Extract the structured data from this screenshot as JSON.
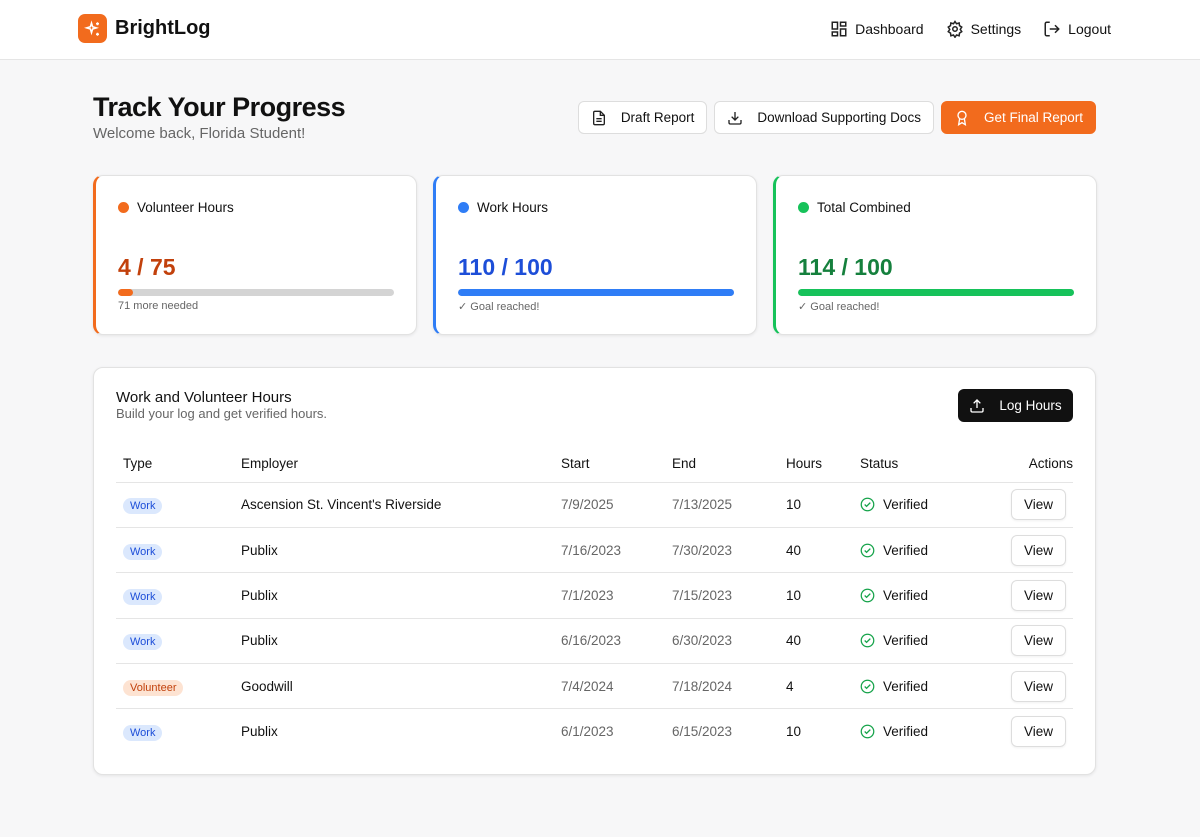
{
  "header": {
    "brand": "BrightLog",
    "nav": [
      "Dashboard",
      "Settings",
      "Logout"
    ]
  },
  "hero": {
    "title": "Track Your Progress",
    "subtitle": "Welcome back, Florida Student!",
    "buttons": [
      "Draft Report",
      "Download Supporting Docs",
      "Get Final Report"
    ]
  },
  "cards": [
    {
      "title": "Volunteer Hours",
      "value": 4,
      "goal": 75,
      "label": "4 / 75",
      "note": "71 more needed",
      "color": "#f26b1d",
      "text_color": "#c2410c"
    },
    {
      "title": "Work Hours",
      "value": 110,
      "goal": 100,
      "label": "110 / 100",
      "note": "✓ Goal reached!",
      "color": "#2f7df6",
      "text_color": "#1d4ed8"
    },
    {
      "title": "Total Combined",
      "value": 114,
      "goal": 100,
      "label": "114 / 100",
      "note": "✓ Goal reached!",
      "color": "#16c25a",
      "text_color": "#15803d"
    }
  ],
  "table": {
    "title": "Work and Volunteer Hours",
    "subtitle": "Build your log and get verified hours.",
    "button": "Log Hours",
    "columns": [
      "Type",
      "Employer",
      "Start",
      "End",
      "Hours",
      "Status",
      "Actions"
    ],
    "rows": [
      {
        "type": "Work",
        "tag_color": "blue",
        "employer": "Ascension St. Vincent's Riverside",
        "start": "7/9/2025",
        "end": "7/13/2025",
        "hours": 10,
        "status": "Verified",
        "action": "View"
      },
      {
        "type": "Work",
        "tag_color": "blue",
        "employer": "Publix",
        "start": "7/16/2023",
        "end": "7/30/2023",
        "hours": 40,
        "status": "Verified",
        "action": "View"
      },
      {
        "type": "Work",
        "tag_color": "blue",
        "employer": "Publix",
        "start": "7/1/2023",
        "end": "7/15/2023",
        "hours": 10,
        "status": "Verified",
        "action": "View"
      },
      {
        "type": "Work",
        "tag_color": "blue",
        "employer": "Publix",
        "start": "6/16/2023",
        "end": "6/30/2023",
        "hours": 40,
        "status": "Verified",
        "action": "View"
      },
      {
        "type": "Volunteer",
        "tag_color": "orange",
        "employer": "Goodwill",
        "start": "7/4/2024",
        "end": "7/18/2024",
        "hours": 4,
        "status": "Verified",
        "action": "View"
      },
      {
        "type": "Work",
        "tag_color": "blue",
        "employer": "Publix",
        "start": "6/1/2023",
        "end": "6/15/2023",
        "hours": 10,
        "status": "Verified",
        "action": "View"
      }
    ]
  }
}
